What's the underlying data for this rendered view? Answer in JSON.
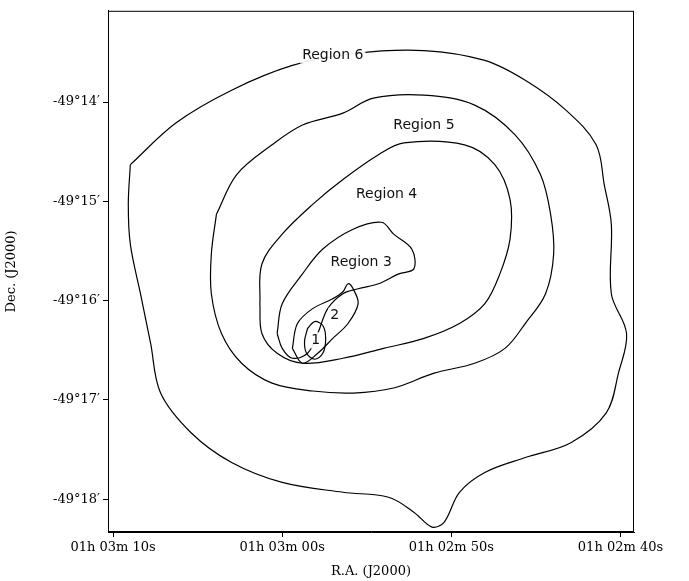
{
  "chart_data": {
    "type": "contour",
    "x_label": "R.A. (J2000)",
    "y_label": "Dec. (J2000)",
    "xlim": [
      3790.3,
      3759.2
    ],
    "ylim": [
      -49.3055,
      -49.218
    ],
    "xticks": [
      {
        "value": 3790,
        "label": "01h 03m 10s"
      },
      {
        "value": 3780,
        "label": "01h 03m 00s"
      },
      {
        "value": 3770,
        "label": "01h 02m 50s"
      },
      {
        "value": 3760,
        "label": "01h 02m 40s"
      }
    ],
    "yticks": [
      {
        "value": -49.23333,
        "label": "-49°14′"
      },
      {
        "value": -49.25,
        "label": "-49°15′"
      },
      {
        "value": -49.26667,
        "label": "-49°16′"
      },
      {
        "value": -49.28333,
        "label": "-49°17′"
      },
      {
        "value": -49.3,
        "label": "-49°18′"
      }
    ],
    "grid": false,
    "color": "#000000",
    "contours": [
      {
        "label": "Region 6",
        "label_position": [
          3777.01,
          -49.2255
        ],
        "points": [
          [
            3788.98,
            -49.24383
          ],
          [
            3786.29,
            -49.23683
          ],
          [
            3782.99,
            -49.23133
          ],
          [
            3779.4,
            -49.22717
          ],
          [
            3775.81,
            -49.22517
          ],
          [
            3771.62,
            -49.22467
          ],
          [
            3768.02,
            -49.22633
          ],
          [
            3765.63,
            -49.22967
          ],
          [
            3763.23,
            -49.23467
          ],
          [
            3761.44,
            -49.2405
          ],
          [
            3760.96,
            -49.24717
          ],
          [
            3760.54,
            -49.25383
          ],
          [
            3760.54,
            -49.2655
          ],
          [
            3759.64,
            -49.27217
          ],
          [
            3760.12,
            -49.27883
          ],
          [
            3760.84,
            -49.2855
          ],
          [
            3762.93,
            -49.2905
          ],
          [
            3765.63,
            -49.293
          ],
          [
            3768.02,
            -49.2955
          ],
          [
            3769.52,
            -49.29883
          ],
          [
            3770.42,
            -49.30383
          ],
          [
            3771.14,
            -49.30467
          ],
          [
            3772.22,
            -49.30217
          ],
          [
            3773.71,
            -49.29967
          ],
          [
            3776.41,
            -49.29883
          ],
          [
            3780.0,
            -49.29717
          ],
          [
            3782.99,
            -49.29383
          ],
          [
            3785.39,
            -49.28883
          ],
          [
            3787.19,
            -49.28217
          ],
          [
            3787.78,
            -49.27383
          ],
          [
            3788.38,
            -49.2655
          ],
          [
            3788.98,
            -49.25717
          ],
          [
            3789.1,
            -49.2505
          ]
        ]
      },
      {
        "label": "Region 5",
        "label_position": [
          3771.62,
          -49.23717
        ],
        "points": [
          [
            3783.89,
            -49.25217
          ],
          [
            3782.69,
            -49.2455
          ],
          [
            3780.6,
            -49.2405
          ],
          [
            3778.8,
            -49.23717
          ],
          [
            3776.41,
            -49.23517
          ],
          [
            3774.61,
            -49.23267
          ],
          [
            3771.62,
            -49.23217
          ],
          [
            3768.62,
            -49.23383
          ],
          [
            3766.23,
            -49.23883
          ],
          [
            3764.73,
            -49.2455
          ],
          [
            3764.13,
            -49.25217
          ],
          [
            3763.95,
            -49.25883
          ],
          [
            3764.43,
            -49.2655
          ],
          [
            3765.63,
            -49.2705
          ],
          [
            3766.83,
            -49.27467
          ],
          [
            3768.62,
            -49.27717
          ],
          [
            3771.02,
            -49.27883
          ],
          [
            3773.41,
            -49.28133
          ],
          [
            3775.81,
            -49.28217
          ],
          [
            3778.2,
            -49.28183
          ],
          [
            3780.6,
            -49.2805
          ],
          [
            3782.4,
            -49.27717
          ],
          [
            3783.59,
            -49.27217
          ],
          [
            3784.19,
            -49.2655
          ],
          [
            3784.19,
            -49.25883
          ]
        ]
      },
      {
        "label": "Region 4",
        "label_position": [
          3773.83,
          -49.24883
        ],
        "points": [
          [
            3781.32,
            -49.26717
          ],
          [
            3781.2,
            -49.2605
          ],
          [
            3780.0,
            -49.2555
          ],
          [
            3778.2,
            -49.2505
          ],
          [
            3776.41,
            -49.24633
          ],
          [
            3774.31,
            -49.24217
          ],
          [
            3772.81,
            -49.24017
          ],
          [
            3769.22,
            -49.2405
          ],
          [
            3767.43,
            -49.24383
          ],
          [
            3766.53,
            -49.24967
          ],
          [
            3766.53,
            -49.25633
          ],
          [
            3767.13,
            -49.26217
          ],
          [
            3768.02,
            -49.26717
          ],
          [
            3769.52,
            -49.2705
          ],
          [
            3771.62,
            -49.273
          ],
          [
            3774.01,
            -49.27467
          ],
          [
            3776.41,
            -49.27633
          ],
          [
            3778.8,
            -49.27717
          ],
          [
            3780.3,
            -49.2755
          ],
          [
            3781.2,
            -49.27217
          ]
        ]
      },
      {
        "label": "Region 3",
        "label_position": [
          3775.33,
          -49.26017
        ],
        "points": [
          [
            3780.3,
            -49.27217
          ],
          [
            3780.0,
            -49.26717
          ],
          [
            3778.8,
            -49.26217
          ],
          [
            3777.6,
            -49.258
          ],
          [
            3775.81,
            -49.25467
          ],
          [
            3774.13,
            -49.2535
          ],
          [
            3773.41,
            -49.2555
          ],
          [
            3772.34,
            -49.258
          ],
          [
            3772.22,
            -49.26133
          ],
          [
            3773.11,
            -49.26217
          ],
          [
            3774.31,
            -49.26383
          ],
          [
            3775.51,
            -49.26467
          ],
          [
            3776.41,
            -49.2655
          ],
          [
            3777.31,
            -49.268
          ],
          [
            3777.9,
            -49.27217
          ],
          [
            3778.5,
            -49.2755
          ],
          [
            3779.4,
            -49.27633
          ],
          [
            3780.0,
            -49.27467
          ]
        ]
      },
      {
        "label": "2",
        "label_position": [
          3776.89,
          -49.26917
        ],
        "points": [
          [
            3779.4,
            -49.27467
          ],
          [
            3779.1,
            -49.2705
          ],
          [
            3778.2,
            -49.268
          ],
          [
            3777.01,
            -49.26633
          ],
          [
            3776.41,
            -49.26517
          ],
          [
            3776.11,
            -49.26383
          ],
          [
            3775.81,
            -49.26467
          ],
          [
            3775.51,
            -49.26717
          ],
          [
            3776.11,
            -49.2705
          ],
          [
            3777.01,
            -49.273
          ],
          [
            3777.9,
            -49.2755
          ],
          [
            3778.8,
            -49.27717
          ]
        ]
      },
      {
        "label": "1",
        "label_position": [
          3778.02,
          -49.27333
        ],
        "points": [
          [
            3778.5,
            -49.27133
          ],
          [
            3778.08,
            -49.27017
          ],
          [
            3777.6,
            -49.27083
          ],
          [
            3777.43,
            -49.273
          ],
          [
            3777.6,
            -49.2755
          ],
          [
            3778.08,
            -49.2765
          ],
          [
            3778.56,
            -49.2755
          ],
          [
            3778.68,
            -49.2735
          ]
        ]
      }
    ]
  }
}
